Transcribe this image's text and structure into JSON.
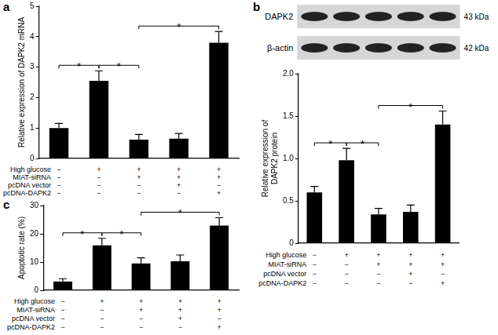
{
  "chart_data": [
    {
      "type": "bar",
      "title": "a",
      "y_label": "Relative expression of DAPK2 mRNA",
      "values": [
        1.0,
        2.55,
        0.62,
        0.65,
        3.8
      ],
      "errors": [
        0.15,
        0.33,
        0.17,
        0.17,
        0.37
      ],
      "color": "#000000",
      "ylim": [
        0,
        5
      ],
      "yticks": [
        0,
        1,
        2,
        3,
        4,
        5
      ],
      "grid": false,
      "tick_labels": "y",
      "significance": [
        {
          "from": 0,
          "to": 1,
          "label": "*"
        },
        {
          "from": 1,
          "to": 2,
          "label": "*"
        },
        {
          "from": 2,
          "to": 4,
          "label": "*"
        }
      ],
      "conditions": [
        {
          "label": "High glucose",
          "signs": [
            "−",
            "+",
            "+",
            "+",
            "+"
          ]
        },
        {
          "label": "MIAT-siRNA",
          "signs": [
            "−",
            "−",
            "+",
            "+",
            "+"
          ]
        },
        {
          "label": "pcDNA vector",
          "signs": [
            "−",
            "−",
            "−",
            "+",
            "−"
          ]
        },
        {
          "label": "pcDNA-DAPK2",
          "signs": [
            "−",
            "−",
            "−",
            "−",
            "+"
          ]
        }
      ]
    },
    {
      "type": "bar",
      "title": "b",
      "blot": {
        "rows": [
          {
            "label": "DAPK2",
            "size": "43 kDa"
          },
          {
            "label": "β-actin",
            "size": "42 kDa"
          }
        ]
      },
      "y_label": [
        "Relative expression of",
        "DAPK2 protein"
      ],
      "values": [
        0.6,
        0.98,
        0.34,
        0.37,
        1.4
      ],
      "errors": [
        0.07,
        0.14,
        0.07,
        0.08,
        0.16
      ],
      "color": "#000000",
      "ylim": [
        0,
        2.0
      ],
      "yticks": [
        0,
        0.5,
        {
          "value": 1.0,
          "label": "1.0"
        },
        1.5,
        {
          "value": 2.0,
          "label": "2.0"
        }
      ],
      "grid": false,
      "tick_labels": "y",
      "significance": [
        {
          "from": 0,
          "to": 1,
          "label": "*"
        },
        {
          "from": 1,
          "to": 2,
          "label": "*"
        },
        {
          "from": 2,
          "to": 4,
          "label": "*"
        }
      ],
      "conditions": [
        {
          "label": "High glucose",
          "signs": [
            "−",
            "+",
            "+",
            "+",
            "+"
          ]
        },
        {
          "label": "MIAT-siRNA",
          "signs": [
            "−",
            "−",
            "+",
            "+",
            "+"
          ]
        },
        {
          "label": "pcDNA vector",
          "signs": [
            "−",
            "−",
            "−",
            "+",
            "−"
          ]
        },
        {
          "label": "pcDNA-DAPK2",
          "signs": [
            "−",
            "−",
            "−",
            "−",
            "+"
          ]
        }
      ]
    },
    {
      "type": "bar",
      "title": "c",
      "y_label": "Apoptotic rate (%)",
      "values": [
        3.1,
        15.9,
        9.5,
        10.3,
        22.9
      ],
      "errors": [
        1.0,
        2.5,
        2.0,
        2.2,
        2.8
      ],
      "color": "#000000",
      "ylim": [
        0,
        30
      ],
      "yticks": [
        0,
        10,
        20,
        30
      ],
      "grid": false,
      "tick_labels": "y",
      "significance": [
        {
          "from": 0,
          "to": 1,
          "label": "*"
        },
        {
          "from": 1,
          "to": 2,
          "label": "*"
        },
        {
          "from": 2,
          "to": 4,
          "label": "*"
        }
      ],
      "conditions": [
        {
          "label": "High glucose",
          "signs": [
            "−",
            "+",
            "+",
            "+",
            "+"
          ]
        },
        {
          "label": "MIAT-siRNA",
          "signs": [
            "−",
            "−",
            "+",
            "+",
            "+"
          ]
        },
        {
          "label": "pcDNA vector",
          "signs": [
            "−",
            "−",
            "−",
            "+",
            "−"
          ]
        },
        {
          "label": "pcDNA-DAPK2",
          "signs": [
            "−",
            "−",
            "−",
            "−",
            "+"
          ]
        }
      ]
    }
  ]
}
